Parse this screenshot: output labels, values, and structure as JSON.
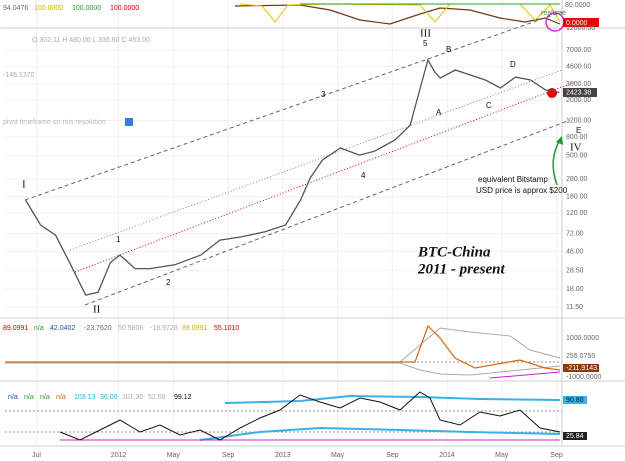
{
  "top_indicator": {
    "values": [
      "94.0476",
      "100.0000",
      "100.0000",
      "100.0000"
    ],
    "axis_label": "80.0000",
    "realtime": "realtime",
    "last": "0.0000"
  },
  "main_chart": {
    "type": "line",
    "ohlc": "O 302.11 H 480.00 L 336.60 C 453.00",
    "indicator_value": "-146.1370",
    "pivot_note": "pivot timeframe on mis resolution",
    "x": [
      -0.8,
      0.3,
      1.4,
      2.5,
      3.6,
      4.5,
      5.4,
      6.1,
      7.2,
      8.3,
      10.1,
      12,
      13.4,
      14.9,
      16.7,
      18.2,
      19.3,
      20,
      20.9,
      22.2,
      23.6,
      24.7,
      26.2,
      27.3,
      28,
      28.6,
      29.1,
      29.5,
      30.6,
      31.7,
      32.8,
      33.9,
      35,
      36.1,
      37.2,
      38.2
    ],
    "values": [
      166,
      89,
      69,
      33,
      15.5,
      16.6,
      35,
      42,
      30,
      30,
      33,
      42,
      61,
      66,
      75,
      89,
      166,
      287,
      450,
      607,
      509,
      560,
      741,
      1070,
      2580,
      5460,
      4050,
      3470,
      4250,
      3750,
      3310,
      2710,
      3560,
      3310,
      2580,
      2423
    ],
    "color": "#555",
    "log_scale": true,
    "ylim": [
      8.75,
      12100
    ],
    "yticks": [
      {
        "value": 12000,
        "label": "12000.00"
      },
      {
        "value": 7000,
        "label": "7000.00"
      },
      {
        "value": 4600,
        "label": "4600.00"
      },
      {
        "value": 3000,
        "label": "3000.00"
      },
      {
        "value": 2000,
        "label": "2000.00"
      },
      {
        "value": 1200,
        "label": "1200.00"
      },
      {
        "value": 800,
        "label": "800.00"
      },
      {
        "value": 500,
        "label": "500.00"
      },
      {
        "value": 280,
        "label": "280.00"
      },
      {
        "value": 180,
        "label": "180.00"
      },
      {
        "value": 120,
        "label": "120.00"
      },
      {
        "value": 72,
        "label": "72.00"
      },
      {
        "value": 46,
        "label": "46.00"
      },
      {
        "value": 28.5,
        "label": "28.50"
      },
      {
        "value": 18,
        "label": "18.00"
      },
      {
        "value": 11.5,
        "label": "11.50"
      }
    ],
    "xlim": [
      -2.3,
      38.4
    ],
    "xticks": [
      {
        "value": 0,
        "label": "Jul"
      },
      {
        "value": 6,
        "label": "2012"
      },
      {
        "value": 10,
        "label": "May"
      },
      {
        "value": 14,
        "label": "Sep"
      },
      {
        "value": 18,
        "label": "2013"
      },
      {
        "value": 22,
        "label": "May"
      },
      {
        "value": 26,
        "label": "Sep"
      },
      {
        "value": 30,
        "label": "2014"
      },
      {
        "value": 34,
        "label": "May"
      },
      {
        "value": 38,
        "label": "Sep"
      }
    ],
    "last_price_label": "2423.38",
    "waves": [
      "I",
      "II",
      "III",
      "IV",
      "1",
      "2",
      "3",
      "4",
      "5",
      "A",
      "B",
      "C",
      "D",
      "E"
    ],
    "note": [
      "equivalent  Bitstamp",
      "USD price is approx $200"
    ],
    "title": [
      "BTC-China",
      "2011 - present"
    ]
  },
  "panel2": {
    "values": [
      "89.0991",
      "n/a",
      "42.0402",
      "-23.7620",
      "50.5806",
      "-18.9728",
      "89.0991",
      "55.1010"
    ],
    "axis": [
      "1000.0000",
      "255.0755",
      "-211.9143",
      "-1000.0000"
    ]
  },
  "panel3": {
    "values": [
      "n/a",
      "n/a",
      "n/a",
      "n/a",
      "103.13",
      "36.00",
      "101.30",
      "52.66",
      "99.12"
    ],
    "axis": [
      "90.80",
      "25.84"
    ]
  }
}
